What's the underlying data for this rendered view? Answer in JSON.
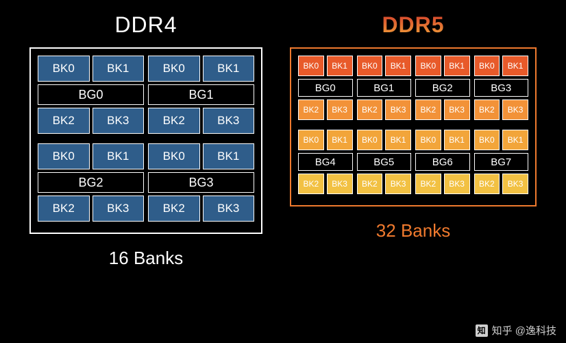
{
  "diagram_type": "infographic",
  "background_color": "#000000",
  "ddr4": {
    "title": "DDR4",
    "title_color": "#ffffff",
    "title_fontsize": 32,
    "border_color": "#ffffff",
    "bank_fill": "#2f5d8a",
    "bank_border": "#ffffff",
    "bank_text_color": "#ffffff",
    "bg_label_bg": "#000000",
    "footer": "16 Banks",
    "footer_color": "#ffffff",
    "footer_fontsize": 26,
    "bank_groups": [
      {
        "label": "BG0",
        "top": [
          "BK0",
          "BK1"
        ],
        "bottom": [
          "BK2",
          "BK3"
        ]
      },
      {
        "label": "BG1",
        "top": [
          "BK0",
          "BK1"
        ],
        "bottom": [
          "BK2",
          "BK3"
        ]
      },
      {
        "label": "BG2",
        "top": [
          "BK0",
          "BK1"
        ],
        "bottom": [
          "BK2",
          "BK3"
        ]
      },
      {
        "label": "BG3",
        "top": [
          "BK0",
          "BK1"
        ],
        "bottom": [
          "BK2",
          "BK3"
        ]
      }
    ]
  },
  "ddr5": {
    "title": "DDR5",
    "title_gradient": [
      "#d13a2a",
      "#f2a53a"
    ],
    "title_fontsize": 32,
    "border_color": "#f07a2e",
    "bg_label_bg": "#000000",
    "footer": "32 Banks",
    "footer_color": "#f07a2e",
    "footer_fontsize": 26,
    "row_colors": [
      "#e85a2a",
      "#f29238",
      "#f2a53a",
      "#f2c143"
    ],
    "bank_groups": [
      {
        "label": "BG0",
        "top": [
          "BK0",
          "BK1"
        ],
        "bottom": [
          "BK2",
          "BK3"
        ],
        "row": 0
      },
      {
        "label": "BG1",
        "top": [
          "BK0",
          "BK1"
        ],
        "bottom": [
          "BK2",
          "BK3"
        ],
        "row": 0
      },
      {
        "label": "BG2",
        "top": [
          "BK0",
          "BK1"
        ],
        "bottom": [
          "BK2",
          "BK3"
        ],
        "row": 0
      },
      {
        "label": "BG3",
        "top": [
          "BK0",
          "BK1"
        ],
        "bottom": [
          "BK2",
          "BK3"
        ],
        "row": 0
      },
      {
        "label": "BG4",
        "top": [
          "BK0",
          "BK1"
        ],
        "bottom": [
          "BK2",
          "BK3"
        ],
        "row": 1
      },
      {
        "label": "BG5",
        "top": [
          "BK0",
          "BK1"
        ],
        "bottom": [
          "BK2",
          "BK3"
        ],
        "row": 1
      },
      {
        "label": "BG6",
        "top": [
          "BK0",
          "BK1"
        ],
        "bottom": [
          "BK2",
          "BK3"
        ],
        "row": 1
      },
      {
        "label": "BG7",
        "top": [
          "BK0",
          "BK1"
        ],
        "bottom": [
          "BK2",
          "BK3"
        ],
        "row": 1
      }
    ]
  },
  "watermark": {
    "logo_text": "知",
    "text": "知乎 @逸科技",
    "color": "#cfcfcf"
  }
}
